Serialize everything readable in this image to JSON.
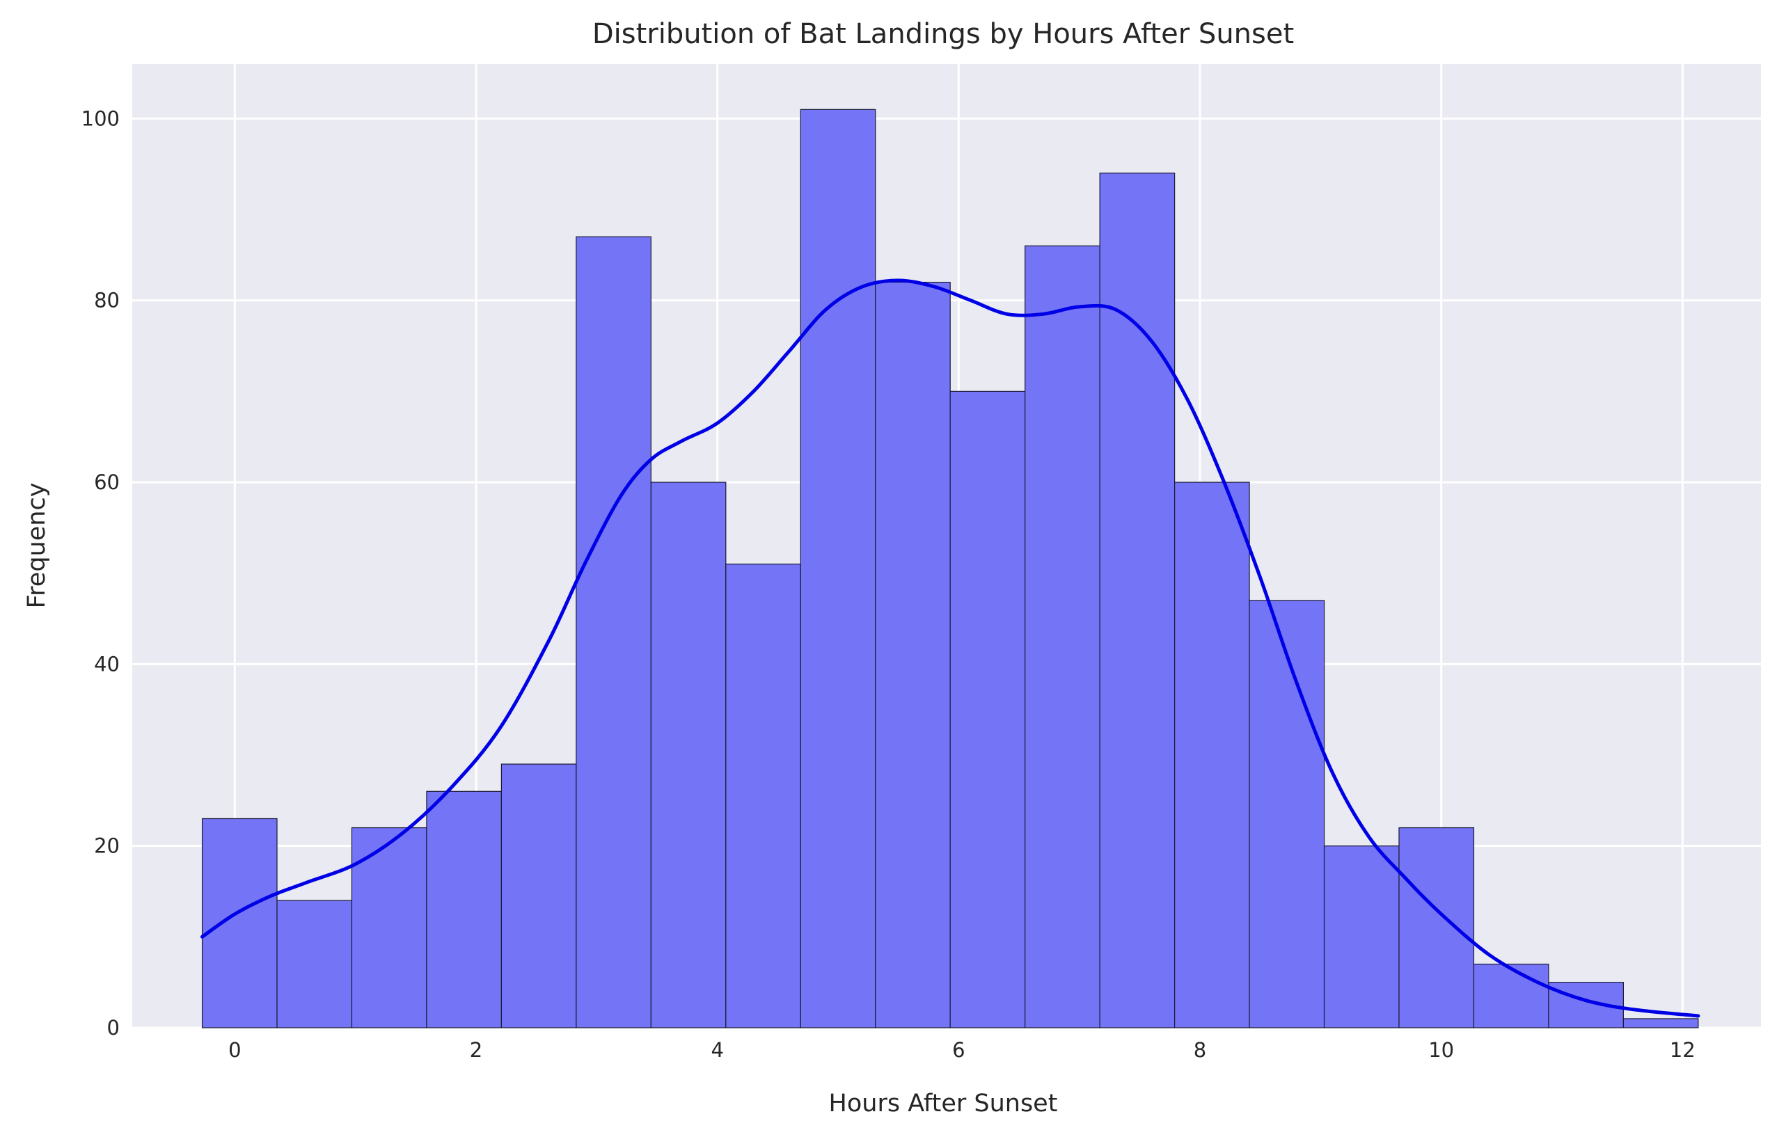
{
  "chart_data": {
    "type": "bar",
    "subtype": "histogram",
    "title": "Distribution of Bat Landings by Hours After Sunset",
    "xlabel": "Hours After Sunset",
    "ylabel": "Frequency",
    "xlim": [
      -0.85,
      12.65
    ],
    "ylim": [
      0,
      106
    ],
    "xticks": [
      0,
      2,
      4,
      6,
      8,
      10,
      12
    ],
    "yticks": [
      0,
      20,
      40,
      60,
      80,
      100
    ],
    "grid": true,
    "legend": "none",
    "bin_edges": [
      -0.27,
      0.35,
      0.97,
      1.59,
      2.21,
      2.83,
      3.45,
      4.07,
      4.69,
      5.31,
      5.93,
      6.55,
      7.17,
      7.79,
      8.41,
      9.03,
      9.65,
      10.27,
      10.89,
      11.51,
      12.13
    ],
    "counts": [
      23,
      14,
      22,
      26,
      29,
      87,
      60,
      51,
      101,
      82,
      70,
      86,
      94,
      60,
      47,
      20,
      22,
      7,
      5,
      1
    ],
    "kde": {
      "x": [
        -0.27,
        0.0,
        0.3,
        0.6,
        1.0,
        1.4,
        1.8,
        2.2,
        2.6,
        2.9,
        3.2,
        3.45,
        3.7,
        4.0,
        4.3,
        4.6,
        4.9,
        5.2,
        5.5,
        5.8,
        6.1,
        6.4,
        6.7,
        7.0,
        7.3,
        7.6,
        7.9,
        8.2,
        8.5,
        8.8,
        9.1,
        9.4,
        9.7,
        10.0,
        10.4,
        10.8,
        11.2,
        11.6,
        12.13
      ],
      "y": [
        10,
        12.5,
        14.5,
        16,
        18,
        21.5,
        26.5,
        33,
        42.5,
        51,
        58.5,
        62.5,
        64.5,
        66.5,
        70,
        74.5,
        79,
        81.5,
        82.2,
        81.5,
        80,
        78.5,
        78.5,
        79.3,
        79,
        75.5,
        69,
        60,
        49.5,
        38,
        28,
        21,
        16.5,
        12.5,
        8,
        5,
        3,
        2,
        1.3
      ]
    },
    "colors": {
      "bar_fill": "#7474f7",
      "bar_edge": "#1a1a33",
      "kde_line": "#0000e6",
      "plot_background": "#eaeaf2",
      "grid": "#ffffff"
    }
  }
}
